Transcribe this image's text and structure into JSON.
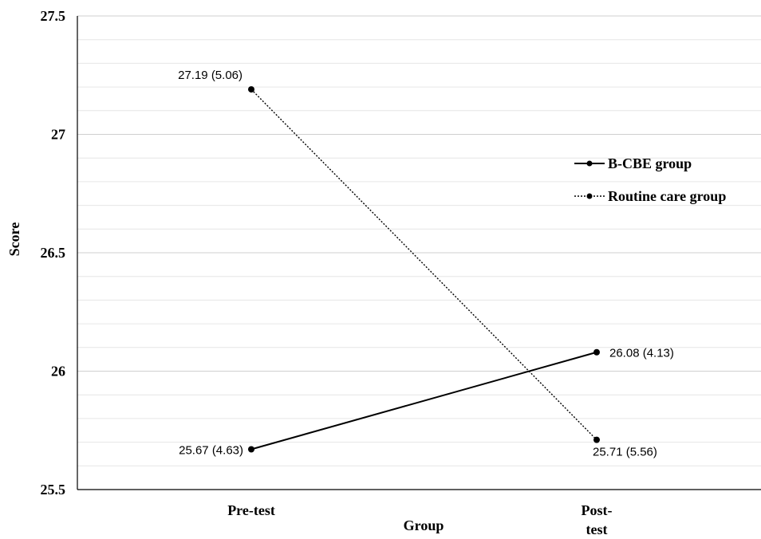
{
  "chart_data": {
    "type": "line",
    "title": "",
    "xlabel": "Group",
    "ylabel": "Score",
    "categories": [
      "Pre-test",
      "Post-test"
    ],
    "ylim": [
      25.5,
      27.5
    ],
    "yticks": [
      "25.5",
      "26",
      "26.5",
      "27",
      "27.5"
    ],
    "ytick_values": [
      25.5,
      26,
      26.5,
      27,
      27.5
    ],
    "minor_grid_step": 0.1,
    "grid": true,
    "legend_position": "right",
    "series": [
      {
        "name": "B-CBE group",
        "style": "solid",
        "color": "#000000",
        "values": [
          25.67,
          26.08
        ],
        "labels": [
          "25.67 (4.63)",
          "26.08 (4.13)"
        ]
      },
      {
        "name": "Routine care group",
        "style": "dotted",
        "color": "#000000",
        "values": [
          27.19,
          25.71
        ],
        "labels": [
          "27.19 (5.06)",
          "25.71 (5.56)"
        ]
      }
    ]
  }
}
